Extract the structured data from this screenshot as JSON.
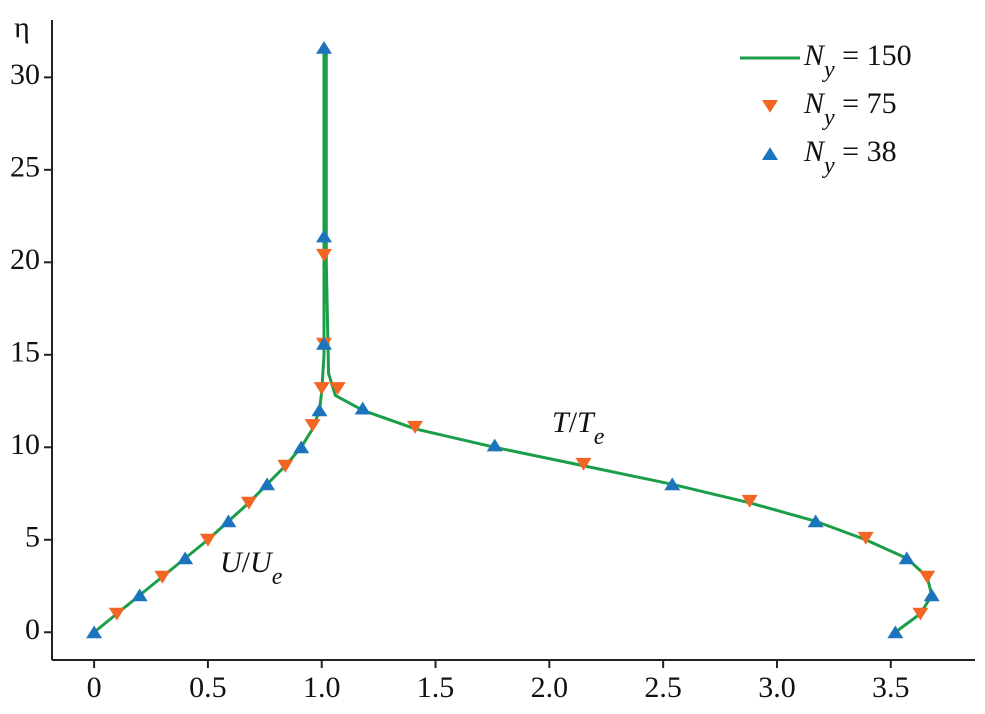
{
  "chart_data": {
    "type": "line",
    "y_label": "η",
    "xlim": [
      -0.185,
      3.87
    ],
    "ylim": [
      -1.5,
      33.1
    ],
    "xticks": [
      0,
      0.5,
      {
        "value": 1,
        "label": "1.0"
      },
      1.5,
      {
        "value": 2,
        "label": "2.0"
      },
      2.5,
      {
        "value": 3,
        "label": "3.0"
      },
      3.5
    ],
    "yticks": [
      0,
      5,
      10,
      15,
      20,
      25,
      30
    ],
    "grid": false,
    "legend": "top-right",
    "annotations": [
      "U/Ue",
      "T/Te"
    ],
    "series": [
      {
        "name": "Ny = 150",
        "color": "#1b9e48",
        "style": "line",
        "x": [
          0,
          0.1,
          0.2,
          0.3,
          0.4,
          0.5,
          0.59,
          0.68,
          0.76,
          0.84,
          0.91,
          0.96,
          0.99,
          1.0,
          1.01,
          1.01,
          1.01,
          1.01,
          null,
          3.52,
          3.63,
          3.68,
          3.66,
          3.57,
          3.39,
          3.17,
          2.88,
          2.54,
          2.15,
          1.76,
          1.41,
          1.18,
          1.06,
          1.03,
          1.02,
          1.02
        ],
        "values": [
          0,
          1,
          2,
          3,
          4,
          5,
          6,
          7,
          8,
          9,
          10,
          11,
          12,
          13,
          15,
          20,
          25,
          31.5,
          null,
          0,
          1,
          2,
          3,
          4,
          5,
          6,
          7,
          8,
          9,
          10,
          11,
          12,
          12.8,
          14,
          20,
          31.5
        ]
      },
      {
        "name": "Ny = 75",
        "color": "#f26522",
        "style": "triangle-down",
        "x": [
          0.1,
          0.3,
          0.5,
          0.68,
          0.84,
          0.96,
          1.0,
          1.01,
          1.01,
          1.07,
          1.41,
          2.15,
          2.88,
          3.39,
          3.66,
          3.63
        ],
        "values": [
          1,
          3,
          5,
          7,
          9,
          11.2,
          13.2,
          15.6,
          20.4,
          13.2,
          11.1,
          9.1,
          7.1,
          5.1,
          3,
          1
        ]
      },
      {
        "name": "Ny = 38",
        "color": "#1c75bc",
        "style": "triangle-up",
        "x": [
          0,
          0.2,
          0.4,
          0.59,
          0.76,
          0.91,
          0.99,
          1.01,
          1.01,
          1.01,
          1.18,
          1.76,
          2.54,
          3.17,
          3.57,
          3.68,
          3.52
        ],
        "values": [
          0,
          2,
          4,
          6,
          8,
          10,
          12,
          15.6,
          21.4,
          31.6,
          12.1,
          10.1,
          8,
          6,
          4,
          2,
          0
        ]
      }
    ]
  }
}
